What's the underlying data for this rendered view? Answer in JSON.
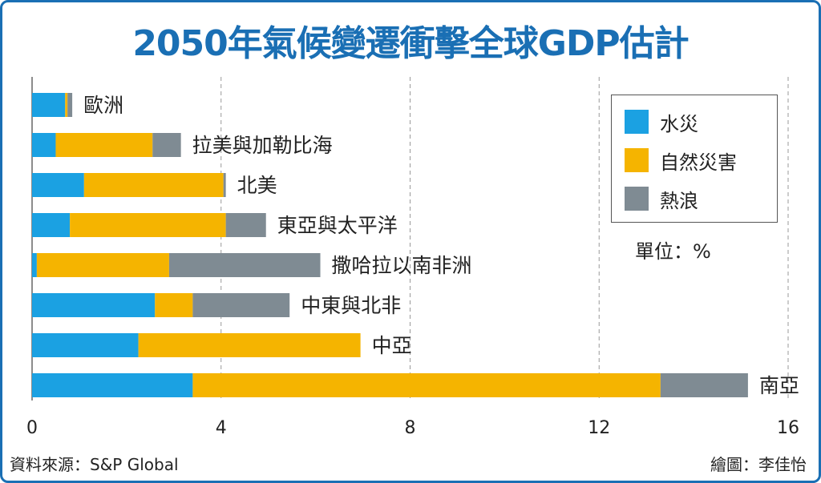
{
  "title": "2050年氣候變遷衝擊全球GDP估計",
  "unit_label": "單位：%",
  "source": "資料來源：S&P Global",
  "credit": "繪圖：李佳怡",
  "colors": {
    "flood": "#1ba1e2",
    "disaster": "#f5b400",
    "heatwave": "#7f8b93",
    "title": "#1a6fb4"
  },
  "chart_data": {
    "type": "bar",
    "orientation": "horizontal",
    "stacked": true,
    "title": "2050年氣候變遷衝擊全球GDP估計",
    "xlim": [
      0,
      16
    ],
    "xticks": [
      0,
      4,
      8,
      12,
      16
    ],
    "grid": true,
    "legend_position": "top-right",
    "categories": [
      "歐洲",
      "拉美與加勒比海",
      "北美",
      "東亞與太平洋",
      "撒哈拉以南非洲",
      "中東與北非",
      "中亞",
      "南亞"
    ],
    "series": [
      {
        "name": "水災",
        "color": "#1ba1e2",
        "values": [
          0.7,
          0.5,
          1.1,
          0.8,
          0.1,
          2.6,
          2.25,
          3.4
        ]
      },
      {
        "name": "自然災害",
        "color": "#f5b400",
        "values": [
          0.05,
          2.05,
          2.95,
          3.3,
          2.8,
          0.8,
          4.7,
          9.9
        ]
      },
      {
        "name": "熱浪",
        "color": "#7f8b93",
        "values": [
          0.1,
          0.6,
          0.05,
          0.85,
          3.2,
          2.05,
          0.0,
          1.85
        ]
      }
    ]
  }
}
